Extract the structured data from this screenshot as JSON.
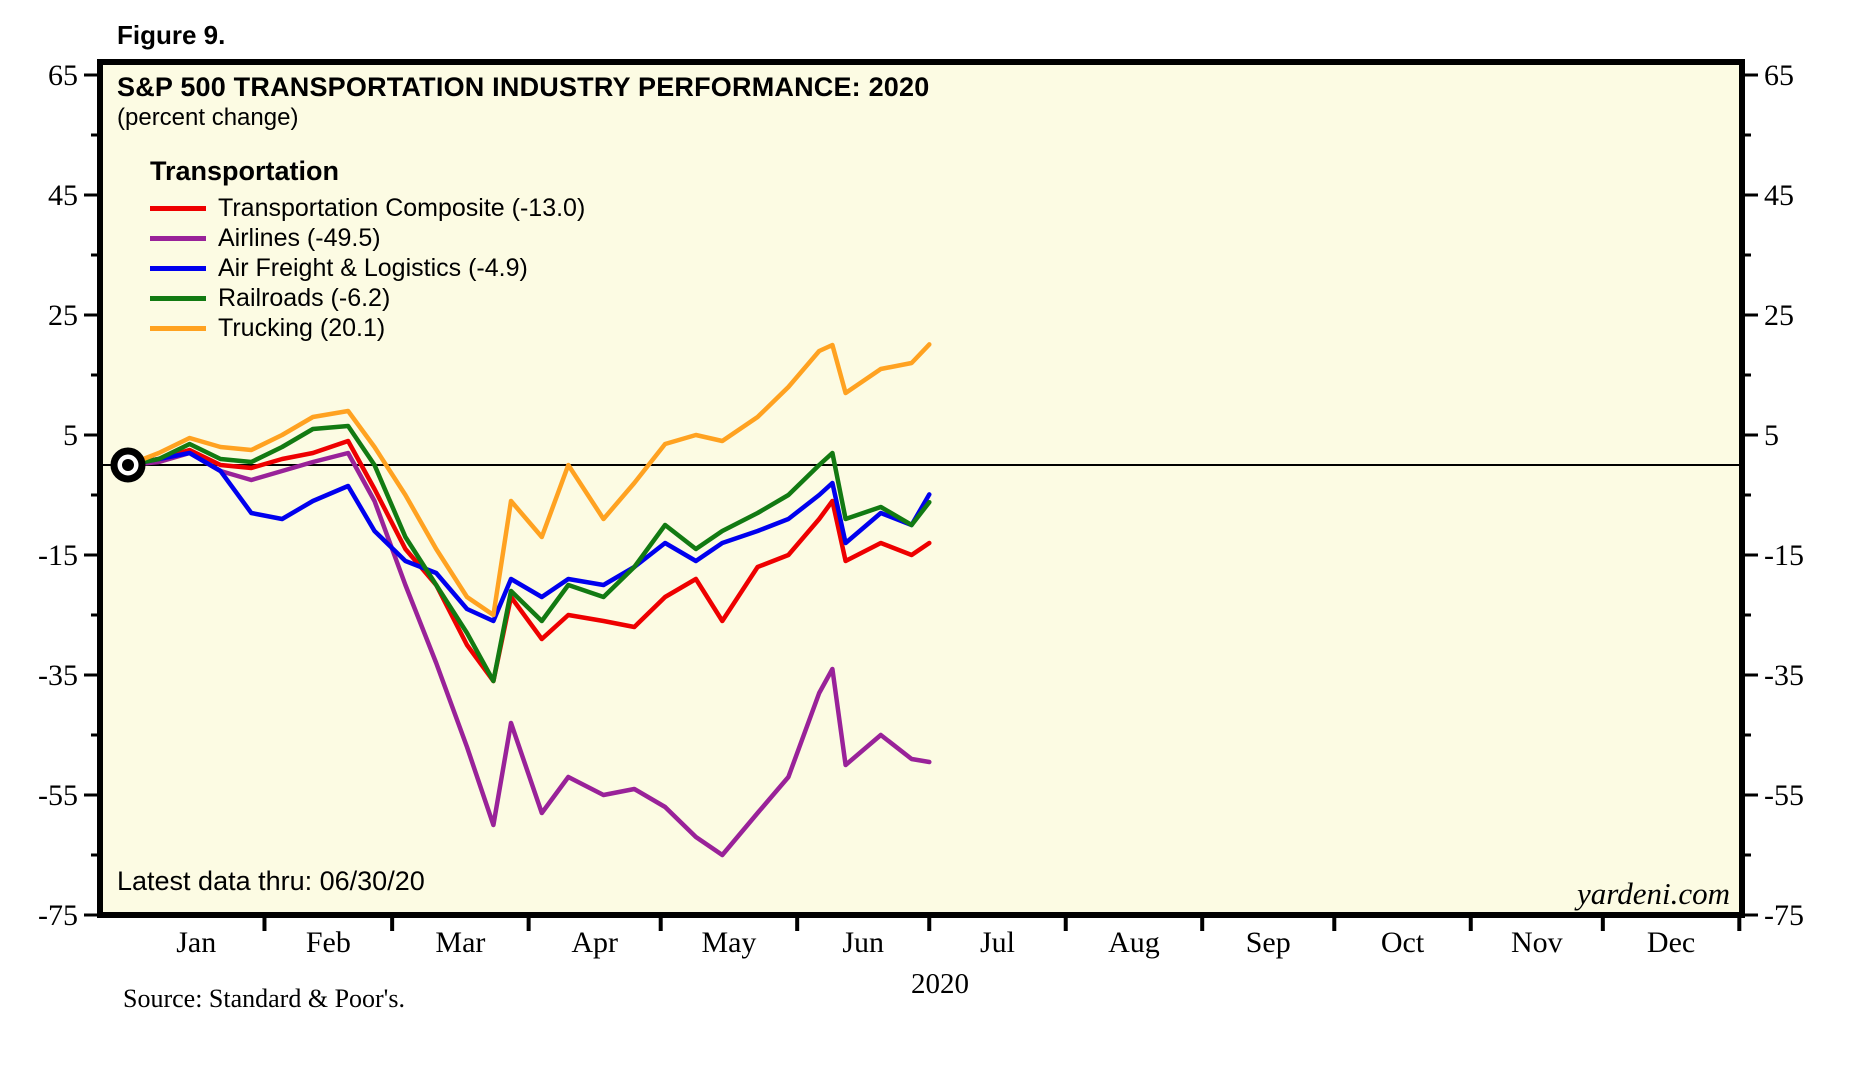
{
  "figure_label": "Figure 9.",
  "title": "S&P 500 TRANSPORTATION INDUSTRY PERFORMANCE: 2020",
  "subtitle": "(percent change)",
  "legend": {
    "header": "Transportation",
    "items": [
      {
        "label": "Transportation Composite (-13.0)",
        "color": "#ee0000"
      },
      {
        "label": "Airlines (-49.5)",
        "color": "#992299"
      },
      {
        "label": "Air Freight & Logistics (-4.9)",
        "color": "#0000ee"
      },
      {
        "label": "Railroads (-6.2)",
        "color": "#127a12"
      },
      {
        "label": "Trucking (20.1)",
        "color": "#ffa221"
      }
    ]
  },
  "annotations": {
    "latest_data": "Latest data thru: 06/30/20",
    "watermark": "yardeni.com",
    "year_label": "2020",
    "source": "Source: Standard & Poor's."
  },
  "colors": {
    "plot_background": "#fcfbe3",
    "frame": "#000000",
    "zero_line": "#000000"
  },
  "chart_data": {
    "type": "line",
    "title": "S&P 500 TRANSPORTATION INDUSTRY PERFORMANCE: 2020",
    "ylabel": "percent change",
    "ylim": [
      -75,
      65
    ],
    "y_ticks_major": [
      65,
      45,
      25,
      5,
      -15,
      -35,
      -55,
      -75
    ],
    "y_ticks_minor": [
      55,
      35,
      15,
      -5,
      -25,
      -45,
      -65
    ],
    "months": [
      "Jan",
      "Feb",
      "Mar",
      "Apr",
      "May",
      "Jun",
      "Jul",
      "Aug",
      "Sep",
      "Oct",
      "Nov",
      "Dec"
    ],
    "zero_line": true,
    "start_marker": {
      "date": "12/31/19",
      "value": 0
    },
    "x_dates": [
      "12/31",
      "1/7",
      "1/14",
      "1/21",
      "1/28",
      "2/4",
      "2/11",
      "2/19",
      "2/25",
      "3/3",
      "3/10",
      "3/17",
      "3/23",
      "3/27",
      "4/3",
      "4/9",
      "4/17",
      "4/24",
      "5/1",
      "5/8",
      "5/14",
      "5/22",
      "5/29",
      "6/5",
      "6/8",
      "6/11",
      "6/19",
      "6/26",
      "6/30"
    ],
    "x_days": [
      0,
      7,
      14,
      21,
      28,
      35,
      42,
      50,
      56,
      63,
      70,
      77,
      83,
      87,
      94,
      100,
      108,
      115,
      122,
      129,
      135,
      143,
      150,
      157,
      160,
      163,
      171,
      178,
      182
    ],
    "series": [
      {
        "name": "Transportation Composite",
        "end_value": -13.0,
        "color": "#ee0000",
        "values": [
          0,
          1,
          2.5,
          0,
          -0.5,
          1,
          2,
          4,
          -4,
          -14,
          -20,
          -30,
          -36,
          -22,
          -29,
          -25,
          -26,
          -27,
          -22,
          -19,
          -26,
          -17,
          -15,
          -9,
          -6,
          -16,
          -13,
          -15,
          -13
        ]
      },
      {
        "name": "Airlines",
        "end_value": -49.5,
        "color": "#992299",
        "values": [
          0,
          0.5,
          2,
          -1,
          -2.5,
          -1,
          0.5,
          2,
          -6,
          -20,
          -33,
          -47,
          -60,
          -43,
          -58,
          -52,
          -55,
          -54,
          -57,
          -62,
          -65,
          -58,
          -52,
          -38,
          -34,
          -50,
          -45,
          -49,
          -49.5
        ]
      },
      {
        "name": "Air Freight & Logistics",
        "end_value": -4.9,
        "color": "#0000ee",
        "values": [
          0,
          1,
          2,
          -1,
          -8,
          -9,
          -6,
          -3.5,
          -11,
          -16,
          -18,
          -24,
          -26,
          -19,
          -22,
          -19,
          -20,
          -17,
          -13,
          -16,
          -13,
          -11,
          -9,
          -5,
          -3,
          -13,
          -8,
          -10,
          -4.9
        ]
      },
      {
        "name": "Railroads",
        "end_value": -6.2,
        "color": "#127a12",
        "values": [
          0,
          1,
          3.5,
          1,
          0.5,
          3,
          6,
          6.5,
          0,
          -12,
          -20,
          -28,
          -36,
          -21,
          -26,
          -20,
          -22,
          -17,
          -10,
          -14,
          -11,
          -8,
          -5,
          0,
          2,
          -9,
          -7,
          -10,
          -6.2
        ]
      },
      {
        "name": "Trucking",
        "end_value": 20.1,
        "color": "#ffa221",
        "values": [
          0,
          2,
          4.5,
          3,
          2.5,
          5,
          8,
          9,
          3,
          -5,
          -14,
          -22,
          -25,
          -6,
          -12,
          0,
          -9,
          -3,
          3.5,
          5,
          4,
          8,
          13,
          19,
          20,
          12,
          16,
          17,
          20.1
        ]
      }
    ],
    "legend_position": "top-left",
    "grid": false
  }
}
